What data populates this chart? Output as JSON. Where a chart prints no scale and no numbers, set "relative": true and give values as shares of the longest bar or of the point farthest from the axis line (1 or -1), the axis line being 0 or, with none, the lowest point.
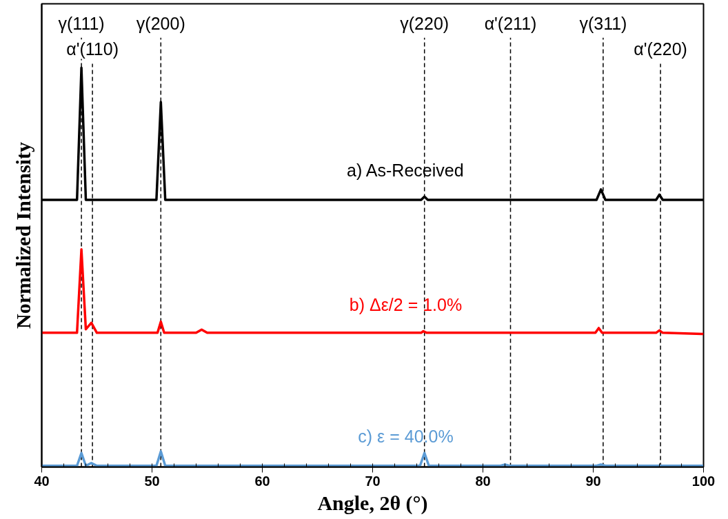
{
  "chart_data": {
    "type": "line",
    "relative": true,
    "xlabel": "Angle, 2θ (°)",
    "ylabel": "Normalized Intensity",
    "xlim": [
      40,
      100
    ],
    "xticks": [
      40,
      50,
      60,
      70,
      80,
      90,
      100
    ],
    "grid": false,
    "marker": "none",
    "line_style": "solid",
    "series": [
      {
        "name": "a) As-Received",
        "color": "#000000",
        "x": [
          40,
          43.2,
          43.6,
          44.0,
          50.4,
          50.8,
          51.2,
          74.4,
          74.7,
          75.0,
          90.3,
          90.7,
          91.1,
          95.7,
          96.0,
          96.3,
          100
        ],
        "values": [
          0.669,
          0.669,
          1.0,
          0.669,
          0.669,
          0.914,
          0.669,
          0.669,
          0.677,
          0.669,
          0.669,
          0.695,
          0.669,
          0.669,
          0.682,
          0.669,
          0.669
        ]
      },
      {
        "name": "b) Δε/2 = 1.0%",
        "color": "#ff0000",
        "x": [
          40,
          43.2,
          43.6,
          44.0,
          44.5,
          45.0,
          50.5,
          50.8,
          51.1,
          54.0,
          54.5,
          55.0,
          74.4,
          74.6,
          74.9,
          90.2,
          90.5,
          90.8,
          95.7,
          96.0,
          96.3,
          100
        ],
        "values": [
          0.336,
          0.336,
          0.545,
          0.345,
          0.361,
          0.336,
          0.336,
          0.364,
          0.336,
          0.336,
          0.344,
          0.336,
          0.336,
          0.34,
          0.336,
          0.336,
          0.348,
          0.336,
          0.336,
          0.342,
          0.336,
          0.333
        ]
      },
      {
        "name": "c) ε = 40.0%",
        "color": "#5b9bd5",
        "x": [
          40,
          43.2,
          43.6,
          44.0,
          44.5,
          45.0,
          50.4,
          50.8,
          51.2,
          74.3,
          74.7,
          75.1,
          81.6,
          82.0,
          82.4,
          90.3,
          90.7,
          91.1,
          100
        ],
        "values": [
          0.003,
          0.003,
          0.035,
          0.003,
          0.01,
          0.003,
          0.003,
          0.039,
          0.003,
          0.003,
          0.035,
          0.003,
          0.003,
          0.006,
          0.003,
          0.003,
          0.006,
          0.003,
          0.003
        ]
      }
    ],
    "ref_lines": [
      {
        "axis": "x",
        "value": 43.6,
        "label": "γ(111)",
        "color": "#000000",
        "line_style": "dashed"
      },
      {
        "axis": "x",
        "value": 44.6,
        "label": "α'(110)",
        "color": "#000000",
        "line_style": "dashed"
      },
      {
        "axis": "x",
        "value": 50.8,
        "label": "γ(200)",
        "color": "#000000",
        "line_style": "dashed"
      },
      {
        "axis": "x",
        "value": 74.7,
        "label": "γ(220)",
        "color": "#000000",
        "line_style": "dashed"
      },
      {
        "axis": "x",
        "value": 82.5,
        "label": "α'(211)",
        "color": "#000000",
        "line_style": "dashed"
      },
      {
        "axis": "x",
        "value": 90.9,
        "label": "γ(311)",
        "color": "#000000",
        "line_style": "dashed"
      },
      {
        "axis": "x",
        "value": 96.1,
        "label": "α'(220)",
        "color": "#000000",
        "line_style": "dashed"
      }
    ]
  }
}
